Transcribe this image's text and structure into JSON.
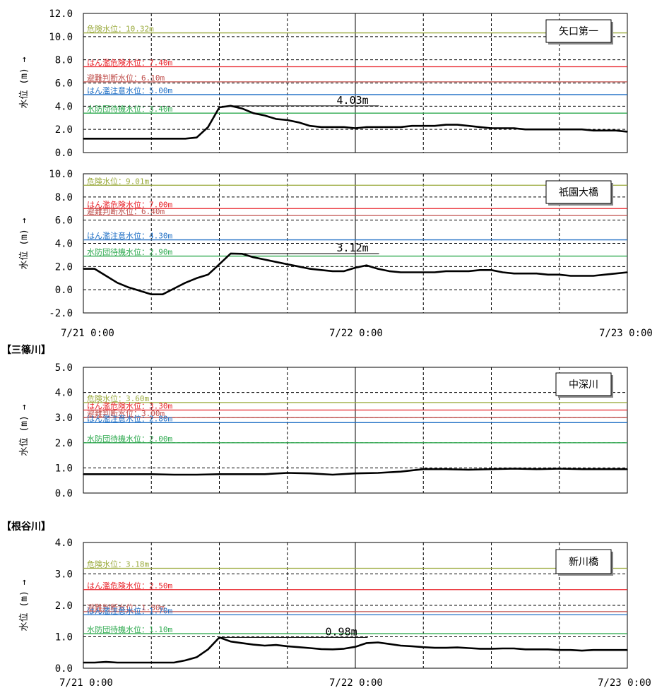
{
  "sections": [
    {
      "heading": ""
    },
    {
      "heading": "【三篠川】"
    },
    {
      "heading": "【根谷川】"
    }
  ],
  "x_tick_labels_top": [
    "7/21 0:00",
    "7/22 0:00",
    "7/23 0:00"
  ],
  "x_tick_labels_bottom": [
    "7/21 0:00",
    "7/22 0:00",
    "7/23 0:00"
  ],
  "chart_data": [
    {
      "type": "line",
      "station": "矢口第一",
      "ylabel": "水位 (m) →",
      "ylim": [
        0,
        12
      ],
      "yticks": [
        "0.0",
        "2.0",
        "4.0",
        "6.0",
        "8.0",
        "10.0",
        "12.0"
      ],
      "xlim_hours": [
        0,
        48
      ],
      "x": [
        0,
        1,
        2,
        3,
        4,
        5,
        6,
        7,
        8,
        9,
        10,
        11,
        12,
        13,
        14,
        15,
        16,
        17,
        18,
        19,
        20,
        21,
        22,
        23,
        24,
        25,
        26,
        27,
        28,
        29,
        30,
        31,
        32,
        33,
        34,
        35,
        36,
        37,
        38,
        39,
        40,
        41,
        42,
        43,
        44,
        45,
        46,
        47,
        48
      ],
      "series": [
        {
          "values": [
            1.2,
            1.2,
            1.2,
            1.2,
            1.2,
            1.2,
            1.2,
            1.2,
            1.2,
            1.2,
            1.3,
            2.2,
            3.9,
            4.03,
            3.8,
            3.4,
            3.2,
            2.9,
            2.8,
            2.6,
            2.3,
            2.2,
            2.2,
            2.2,
            2.1,
            2.2,
            2.2,
            2.2,
            2.2,
            2.3,
            2.3,
            2.3,
            2.4,
            2.4,
            2.3,
            2.2,
            2.1,
            2.1,
            2.1,
            2.0,
            2.0,
            2.0,
            2.0,
            2.0,
            2.0,
            1.9,
            1.9,
            1.9,
            1.8
          ]
        }
      ],
      "thresholds": [
        {
          "label": "危険水位：10.32m",
          "value": 10.32,
          "color": "#9aaa3c"
        },
        {
          "label": "はん濫危険水位：7.40m",
          "value": 7.4,
          "color": "#e8232a"
        },
        {
          "label": "避難判断水位：6.10m",
          "value": 6.1,
          "color": "#c0504d"
        },
        {
          "label": "はん濫注意水位：5.00m",
          "value": 5.0,
          "color": "#1f6fc5"
        },
        {
          "label": "水防団待機水位：3.40m",
          "value": 3.4,
          "color": "#2eaa4f"
        }
      ],
      "peak": {
        "label": "4.03m",
        "value": 4.03
      }
    },
    {
      "type": "line",
      "station": "祇園大橋",
      "ylabel": "水位 (m) →",
      "ylim": [
        -2,
        10
      ],
      "yticks": [
        "-2.0",
        "0.0",
        "2.0",
        "4.0",
        "6.0",
        "8.0",
        "10.0"
      ],
      "xlim_hours": [
        0,
        48
      ],
      "x": [
        0,
        1,
        2,
        3,
        4,
        5,
        6,
        7,
        8,
        9,
        10,
        11,
        12,
        13,
        14,
        15,
        16,
        17,
        18,
        19,
        20,
        21,
        22,
        23,
        24,
        25,
        26,
        27,
        28,
        29,
        30,
        31,
        32,
        33,
        34,
        35,
        36,
        37,
        38,
        39,
        40,
        41,
        42,
        43,
        44,
        45,
        46,
        47,
        48
      ],
      "series": [
        {
          "values": [
            1.8,
            1.8,
            1.2,
            0.6,
            0.2,
            -0.1,
            -0.4,
            -0.4,
            0.1,
            0.6,
            1.0,
            1.3,
            2.2,
            3.12,
            3.1,
            2.8,
            2.6,
            2.4,
            2.2,
            2.0,
            1.8,
            1.7,
            1.6,
            1.6,
            1.9,
            2.1,
            1.8,
            1.6,
            1.5,
            1.5,
            1.5,
            1.5,
            1.6,
            1.6,
            1.6,
            1.7,
            1.7,
            1.5,
            1.4,
            1.4,
            1.4,
            1.3,
            1.3,
            1.2,
            1.2,
            1.2,
            1.3,
            1.4,
            1.5
          ]
        }
      ],
      "thresholds": [
        {
          "label": "危険水位：9.01m",
          "value": 9.01,
          "color": "#9aaa3c"
        },
        {
          "label": "はん濫危険水位：7.00m",
          "value": 7.0,
          "color": "#e8232a"
        },
        {
          "label": "避難判断水位：6.40m",
          "value": 6.4,
          "color": "#c0504d"
        },
        {
          "label": "はん濫注意水位：4.30m",
          "value": 4.3,
          "color": "#1f6fc5"
        },
        {
          "label": "水防団待機水位：2.90m",
          "value": 2.9,
          "color": "#2eaa4f"
        }
      ],
      "peak": {
        "label": "3.12m",
        "value": 3.12
      }
    },
    {
      "type": "line",
      "station": "中深川",
      "ylabel": "水位 (m) →",
      "ylim": [
        0,
        5
      ],
      "yticks": [
        "0.0",
        "1.0",
        "2.0",
        "3.0",
        "4.0",
        "5.0"
      ],
      "xlim_hours": [
        0,
        48
      ],
      "x": [
        0,
        2,
        4,
        6,
        8,
        10,
        12,
        14,
        16,
        18,
        20,
        22,
        24,
        26,
        28,
        30,
        32,
        34,
        36,
        38,
        40,
        42,
        44,
        46,
        48
      ],
      "series": [
        {
          "values": [
            0.75,
            0.75,
            0.75,
            0.75,
            0.73,
            0.73,
            0.75,
            0.75,
            0.75,
            0.8,
            0.78,
            0.73,
            0.78,
            0.8,
            0.85,
            0.95,
            0.95,
            0.93,
            0.95,
            0.97,
            0.95,
            0.97,
            0.95,
            0.95,
            0.95
          ]
        }
      ],
      "thresholds": [
        {
          "label": "危険水位：3.60m",
          "value": 3.6,
          "color": "#9aaa3c"
        },
        {
          "label": "はん濫危険水位：3.30m",
          "value": 3.3,
          "color": "#e8232a"
        },
        {
          "label": "避難判断水位：3.00m",
          "value": 3.0,
          "color": "#c0504d"
        },
        {
          "label": "はん濫注意水位：2.80m",
          "value": 2.8,
          "color": "#1f6fc5"
        },
        {
          "label": "水防団待機水位：2.00m",
          "value": 2.0,
          "color": "#2eaa4f"
        }
      ]
    },
    {
      "type": "line",
      "station": "新川橋",
      "ylabel": "水位 (m) →",
      "ylim": [
        0,
        4
      ],
      "yticks": [
        "0.0",
        "1.0",
        "2.0",
        "3.0",
        "4.0"
      ],
      "xlim_hours": [
        0,
        48
      ],
      "x": [
        0,
        1,
        2,
        3,
        4,
        5,
        6,
        7,
        8,
        9,
        10,
        11,
        12,
        13,
        14,
        15,
        16,
        17,
        18,
        19,
        20,
        21,
        22,
        23,
        24,
        25,
        26,
        27,
        28,
        29,
        30,
        31,
        32,
        33,
        34,
        35,
        36,
        37,
        38,
        39,
        40,
        41,
        42,
        43,
        44,
        45,
        46,
        47,
        48
      ],
      "series": [
        {
          "values": [
            0.18,
            0.18,
            0.2,
            0.18,
            0.18,
            0.18,
            0.18,
            0.18,
            0.18,
            0.25,
            0.35,
            0.6,
            0.98,
            0.85,
            0.8,
            0.75,
            0.72,
            0.74,
            0.7,
            0.67,
            0.64,
            0.61,
            0.6,
            0.62,
            0.68,
            0.8,
            0.82,
            0.77,
            0.72,
            0.7,
            0.67,
            0.65,
            0.65,
            0.66,
            0.64,
            0.62,
            0.62,
            0.63,
            0.63,
            0.6,
            0.6,
            0.6,
            0.58,
            0.58,
            0.56,
            0.58,
            0.58,
            0.58,
            0.58
          ]
        }
      ],
      "thresholds": [
        {
          "label": "危険水位：3.18m",
          "value": 3.18,
          "color": "#9aaa3c"
        },
        {
          "label": "はん濫危険水位：2.50m",
          "value": 2.5,
          "color": "#e8232a"
        },
        {
          "label": "避難判断水位：1.80m",
          "value": 1.8,
          "color": "#c0504d"
        },
        {
          "label": "はん濫注意水位：1.70m",
          "value": 1.7,
          "color": "#1f6fc5"
        },
        {
          "label": "水防団待機水位：1.10m",
          "value": 1.1,
          "color": "#2eaa4f"
        }
      ],
      "peak": {
        "label": "0.98m",
        "value": 0.98
      }
    }
  ]
}
